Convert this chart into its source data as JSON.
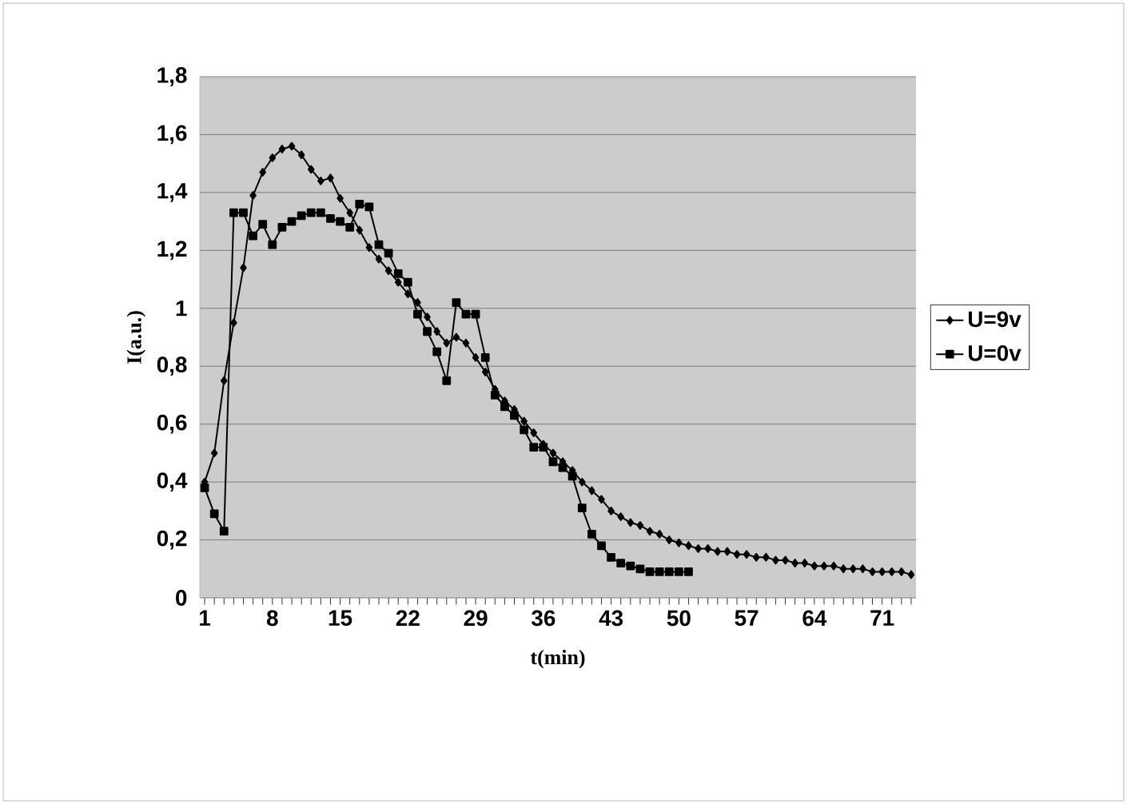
{
  "chart_data": {
    "type": "line",
    "xlabel": "t(min)",
    "ylabel": "I(a.u.)",
    "categories": [
      "1",
      null,
      null,
      null,
      null,
      null,
      null,
      "8",
      null,
      null,
      null,
      null,
      null,
      null,
      "15",
      null,
      null,
      null,
      null,
      null,
      null,
      "22",
      null,
      null,
      null,
      null,
      null,
      null,
      "29",
      null,
      null,
      null,
      null,
      null,
      null,
      "36",
      null,
      null,
      null,
      null,
      null,
      null,
      "43",
      null,
      null,
      null,
      null,
      null,
      null,
      "50",
      null,
      null,
      null,
      null,
      null,
      null,
      "57",
      null,
      null,
      null,
      null,
      null,
      null,
      "64",
      null,
      null,
      null,
      null,
      null,
      null,
      "71",
      null,
      null,
      null
    ],
    "series": [
      {
        "name": "U=9v",
        "color": "#000000",
        "marker": "diamond",
        "values": [
          0.4,
          0.5,
          0.75,
          0.95,
          1.14,
          1.39,
          1.47,
          1.52,
          1.55,
          1.56,
          1.53,
          1.48,
          1.44,
          1.45,
          1.38,
          1.33,
          1.27,
          1.21,
          1.17,
          1.13,
          1.09,
          1.05,
          1.02,
          0.97,
          0.92,
          0.88,
          0.9,
          0.88,
          0.83,
          0.78,
          0.72,
          0.68,
          0.65,
          0.61,
          0.57,
          0.53,
          0.5,
          0.47,
          0.44,
          0.4,
          0.37,
          0.34,
          0.3,
          0.28,
          0.26,
          0.25,
          0.23,
          0.22,
          0.2,
          0.19,
          0.18,
          0.17,
          0.17,
          0.16,
          0.16,
          0.15,
          0.15,
          0.14,
          0.14,
          0.13,
          0.13,
          0.12,
          0.12,
          0.11,
          0.11,
          0.11,
          0.1,
          0.1,
          0.1,
          0.09,
          0.09,
          0.09,
          0.09,
          0.08
        ]
      },
      {
        "name": "U=0v",
        "color": "#000000",
        "marker": "square",
        "values": [
          0.38,
          0.29,
          0.23,
          1.33,
          1.33,
          1.25,
          1.29,
          1.22,
          1.28,
          1.3,
          1.32,
          1.33,
          1.33,
          1.31,
          1.3,
          1.28,
          1.36,
          1.35,
          1.22,
          1.19,
          1.12,
          1.09,
          0.98,
          0.92,
          0.85,
          0.75,
          1.02,
          0.98,
          0.98,
          0.83,
          0.7,
          0.66,
          0.63,
          0.58,
          0.52,
          0.52,
          0.47,
          0.45,
          0.42,
          0.31,
          0.22,
          0.18,
          0.14,
          0.12,
          0.11,
          0.1,
          0.09,
          0.09,
          0.09,
          0.09,
          0.09,
          null,
          null,
          null,
          null,
          null,
          null,
          null,
          null,
          null,
          null,
          null,
          null,
          null,
          null,
          null,
          null,
          null,
          null,
          null,
          null,
          null,
          null,
          null
        ]
      }
    ],
    "ylim": [
      0,
      1.8
    ],
    "yticks": [
      0,
      {
        "value": 0.2,
        "label": "0,2"
      },
      {
        "value": 0.4,
        "label": "0,4"
      },
      {
        "value": 0.6,
        "label": "0,6"
      },
      {
        "value": 0.8,
        "label": "0,8"
      },
      1,
      {
        "value": 1.2,
        "label": "1,2"
      },
      {
        "value": 1.4,
        "label": "1,4"
      },
      {
        "value": 1.6,
        "label": "1,6"
      },
      {
        "value": 1.8,
        "label": "1,8"
      }
    ],
    "grid": "y",
    "legend": "right",
    "line_style": "solid"
  }
}
